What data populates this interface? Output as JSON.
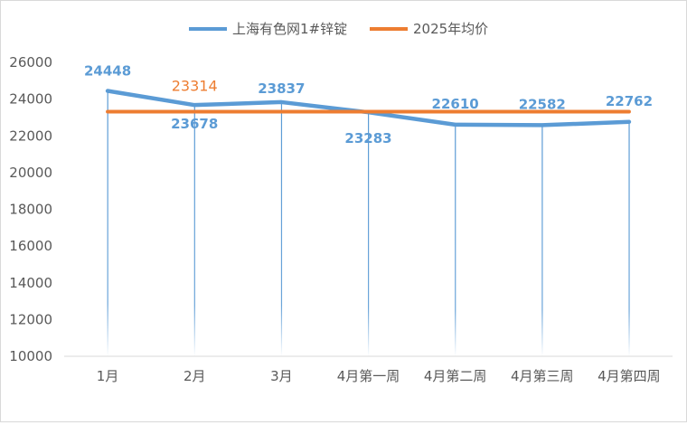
{
  "chart_data": {
    "type": "line",
    "title": "",
    "xlabel": "",
    "ylabel": "",
    "categories": [
      "1月",
      "2月",
      "3月",
      "4月第一周",
      "4月第二周",
      "4月第三周",
      "4月第四周"
    ],
    "series": [
      {
        "name": "上海有色网1#锌锭",
        "color": "#5b9bd5",
        "values": [
          24448,
          23678,
          23837,
          23283,
          22610,
          22582,
          22762
        ],
        "labels": [
          "24448",
          "23678",
          "23837",
          "23283",
          "22610",
          "22582",
          "22762"
        ],
        "label_color": "#5b9bd5",
        "drop_lines": true
      },
      {
        "name": "2025年均价",
        "color": "#ed7d31",
        "values": [
          23314,
          23314,
          23314,
          23314,
          23314,
          23314,
          23314
        ],
        "labels": [
          "",
          "23314",
          "",
          "",
          "",
          "",
          ""
        ],
        "label_color": "#ed7d31"
      }
    ],
    "ylim": [
      10000,
      26000
    ],
    "yticks": [
      "10000",
      "12000",
      "14000",
      "16000",
      "18000",
      "20000",
      "22000",
      "24000",
      "26000"
    ],
    "grid": false,
    "legend_position": "top"
  }
}
